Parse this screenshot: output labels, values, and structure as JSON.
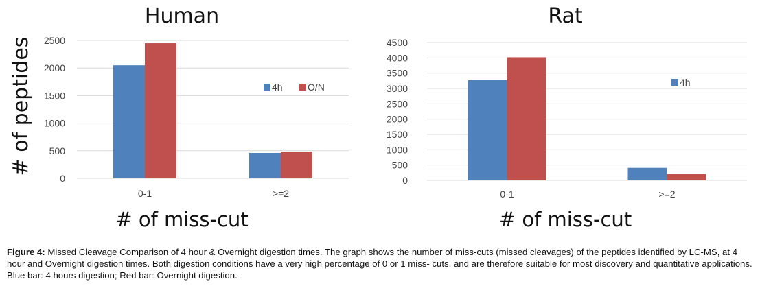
{
  "chart_data": [
    {
      "type": "bar",
      "title": "Human",
      "xlabel": "# of miss-cut",
      "ylabel": "# of peptides",
      "categories": [
        "0-1",
        ">=2"
      ],
      "series": [
        {
          "name": "4h",
          "color": "#4f81bd",
          "values": [
            2050,
            460
          ]
        },
        {
          "name": "O/N",
          "color": "#c0504d",
          "values": [
            2450,
            485
          ]
        }
      ],
      "ylim": [
        0,
        2500
      ],
      "yticks": [
        0,
        500,
        1000,
        1500,
        2000,
        2500
      ],
      "grid": true,
      "legend": "right"
    },
    {
      "type": "bar",
      "title": "Rat",
      "xlabel": "# of miss-cut",
      "categories": [
        "0-1",
        ">=2"
      ],
      "series": [
        {
          "name": "4h",
          "color": "#4f81bd",
          "values": [
            3270,
            410
          ]
        },
        {
          "name": "",
          "color": "#c0504d",
          "values": [
            4020,
            210
          ]
        }
      ],
      "ylim": [
        0,
        4500
      ],
      "yticks": [
        0,
        500,
        1000,
        1500,
        2000,
        2500,
        3000,
        3500,
        4000,
        4500
      ],
      "grid": true,
      "legend": "right"
    }
  ],
  "caption": {
    "label": "Figure 4:",
    "text": " Missed Cleavage Comparison of 4 hour & Overnight digestion times. The graph shows the number of miss-cuts (missed cleavages) of the peptides identified by LC-MS, at 4 hour and Overnight digestion times. Both digestion conditions have a very high percentage of 0 or 1 miss- cuts, and are therefore suitable for most discovery and quantitative applications. Blue bar: 4 hours digestion; Red bar: Overnight digestion."
  }
}
